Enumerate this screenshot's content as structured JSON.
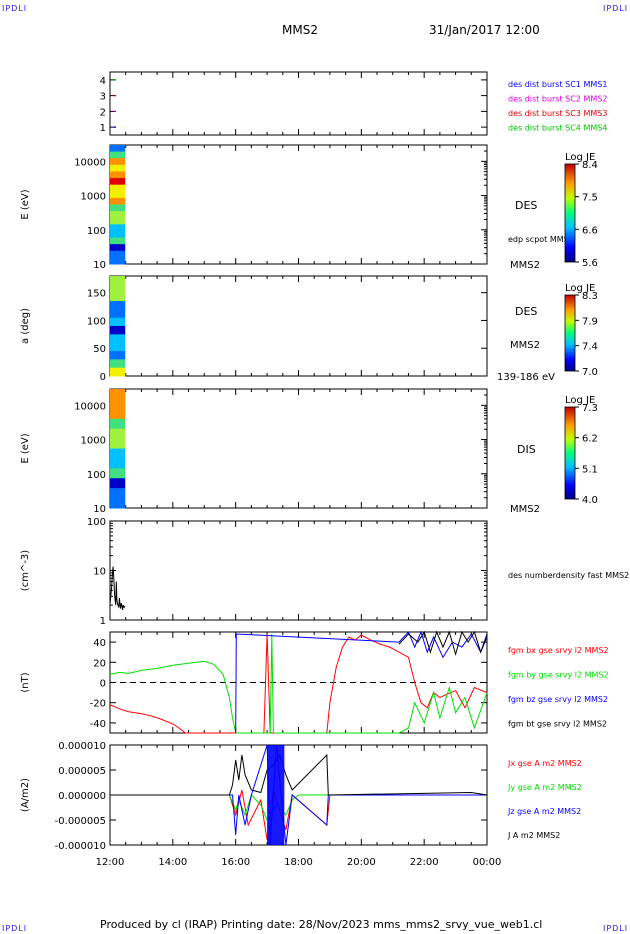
{
  "header": {
    "corner_left": "IPDLI",
    "corner_right": "IPDLI",
    "spacecraft": "MMS2",
    "datetime": "31/Jan/2017 12:00",
    "corner_bottom_left": "IPDLI",
    "corner_bottom_right": "IPDLI"
  },
  "footer": {
    "text": "Produced by cl (IRAP)   Printing date: 28/Nov/2023   mms_mms2_srvy_vue_web1.cl"
  },
  "time_axis": {
    "start_hour": 12,
    "end_hour": 24,
    "ticks": [
      "12:00",
      "14:00",
      "16:00",
      "18:00",
      "20:00",
      "22:00",
      "00:00"
    ]
  },
  "colors": {
    "mms1": "#0000ff",
    "mms2": "#e000e0",
    "mms3": "#e00000",
    "mms4": "#00c000",
    "bx": "#ff0000",
    "by": "#00e000",
    "bz": "#0000ff",
    "bt": "#000000"
  },
  "chart_data": [
    {
      "type": "scatter",
      "panel": "burst_availability",
      "ylim": [
        0.5,
        4.5
      ],
      "yticks": [
        "1",
        "2",
        "3",
        "4"
      ],
      "legend": [
        "des dist burst SC1 MMS1",
        "des dist burst SC2 MMS2",
        "des dist burst SC3 MMS3",
        "des dist burst SC4 MMS4"
      ],
      "series": [
        {
          "name": "des dist burst SC1 MMS1",
          "x": [
            12.15
          ],
          "y": [
            1
          ]
        },
        {
          "name": "des dist burst SC2 MMS2",
          "x": [
            12.15
          ],
          "y": [
            2
          ]
        },
        {
          "name": "des dist burst SC3 MMS3",
          "x": [
            12.15
          ],
          "y": [
            3
          ]
        },
        {
          "name": "des dist burst SC4 MMS4",
          "x": [
            12.15
          ],
          "y": [
            4
          ]
        }
      ]
    },
    {
      "type": "heatmap",
      "panel": "des_energy",
      "ylabel": "E (eV)",
      "yscale": "log",
      "ylim": [
        10,
        30000
      ],
      "yticks": [
        "10",
        "100",
        "1000",
        "10000"
      ],
      "data_span": [
        12.0,
        12.47
      ],
      "side_labels": [
        "DES",
        "edp scpot MMS2",
        "MMS2"
      ],
      "colorbar": {
        "title": "Log JE",
        "ticks": [
          "8.4",
          "7.5",
          "6.6",
          "5.6"
        ],
        "range": [
          5.6,
          8.4
        ]
      }
    },
    {
      "type": "heatmap",
      "panel": "des_pitch",
      "ylabel": "a (deg)",
      "ylim": [
        0,
        180
      ],
      "yticks": [
        "0",
        "50",
        "100",
        "150"
      ],
      "data_span": [
        12.0,
        12.47
      ],
      "side_labels": [
        "DES",
        "MMS2",
        "139-186 eV"
      ],
      "colorbar": {
        "title": "Log JE",
        "ticks": [
          "8.3",
          "7.9",
          "7.4",
          "7.0"
        ],
        "range": [
          7.0,
          8.3
        ]
      }
    },
    {
      "type": "heatmap",
      "panel": "dis_energy",
      "ylabel": "E (eV)",
      "yscale": "log",
      "ylim": [
        10,
        30000
      ],
      "yticks": [
        "10",
        "100",
        "1000",
        "10000"
      ],
      "data_span": [
        12.0,
        12.47
      ],
      "side_labels": [
        "DIS",
        "MMS2"
      ],
      "colorbar": {
        "title": "Log JE",
        "ticks": [
          "7.3",
          "6.2",
          "5.1",
          "4.0"
        ],
        "range": [
          4.0,
          7.3
        ]
      }
    },
    {
      "type": "line",
      "panel": "density",
      "ylabel": "(cm^-3)",
      "yscale": "log",
      "ylim": [
        1,
        100
      ],
      "yticks": [
        "1",
        "10",
        "100"
      ],
      "legend": [
        "des numberdensity fast MMS2"
      ],
      "series": [
        {
          "name": "des numberdensity fast MMS2",
          "x": [
            12.0,
            12.05,
            12.08,
            12.1,
            12.12,
            12.15,
            12.18,
            12.2,
            12.22,
            12.25,
            12.28,
            12.3,
            12.33,
            12.36,
            12.4,
            12.42,
            12.45,
            12.47
          ],
          "y": [
            2.1,
            4.5,
            9.0,
            12.0,
            7.0,
            3.0,
            2.0,
            6.0,
            2.5,
            2.0,
            1.8,
            2.8,
            1.7,
            2.2,
            1.6,
            2.0,
            1.8,
            1.9
          ]
        }
      ]
    },
    {
      "type": "line",
      "panel": "magnetic_field",
      "ylabel": "(nT)",
      "ylim": [
        -50,
        50
      ],
      "yticks": [
        "-40",
        "-20",
        "0",
        "20",
        "40"
      ],
      "zero_line": true,
      "legend": [
        "fgm bx gse srvy l2 MMS2",
        "fgm by gse srvy l2 MMS2",
        "fgm bz gse srvy l2 MMS2",
        "fgm bt gse srvy l2 MMS2"
      ],
      "series": [
        {
          "name": "fgm bx gse srvy l2 MMS2",
          "x": [
            12.0,
            12.3,
            12.6,
            13.0,
            13.3,
            13.6,
            14.0,
            14.2,
            14.4,
            16.9,
            17.0,
            17.1,
            18.9,
            19.0,
            19.2,
            19.4,
            19.6,
            19.8,
            20.0,
            20.3,
            20.6,
            20.9,
            21.2,
            21.5,
            21.7,
            21.9,
            22.1,
            22.3,
            22.5,
            22.7,
            23.0,
            23.3,
            23.6,
            24.0
          ],
          "y": [
            -22,
            -26,
            -29,
            -31,
            -33,
            -36,
            -41,
            -45,
            -50,
            -50,
            48,
            -50,
            -50,
            -20,
            15,
            35,
            45,
            42,
            47,
            42,
            38,
            35,
            30,
            25,
            0,
            -20,
            -25,
            -10,
            -15,
            -12,
            -8,
            -25,
            -5,
            -10
          ]
        },
        {
          "name": "fgm by gse srvy l2 MMS2",
          "x": [
            12.0,
            12.3,
            12.6,
            13.0,
            13.5,
            14.0,
            14.5,
            15.0,
            15.3,
            15.6,
            15.8,
            15.9,
            16.0,
            17.1,
            17.15,
            17.2,
            17.3,
            21.2,
            21.5,
            21.7,
            22.0,
            22.3,
            22.5,
            22.8,
            23.0,
            23.3,
            23.6,
            24.0
          ],
          "y": [
            8,
            10,
            9,
            12,
            14,
            17,
            19,
            21,
            18,
            8,
            -15,
            -35,
            -50,
            -50,
            48,
            -50,
            -50,
            -50,
            -45,
            -20,
            -40,
            -10,
            -35,
            -5,
            -30,
            -15,
            -45,
            -10
          ]
        },
        {
          "name": "fgm bz gse srvy l2 MMS2",
          "x": [
            16.0,
            16.02,
            21.2,
            21.5,
            21.7,
            21.9,
            22.1,
            22.3,
            22.6,
            22.9,
            23.2,
            23.5,
            23.8,
            24.0
          ],
          "y": [
            -50,
            48,
            40,
            50,
            35,
            50,
            30,
            45,
            25,
            40,
            35,
            48,
            30,
            45
          ]
        },
        {
          "name": "fgm bt gse srvy l2 MMS2",
          "x": [
            21.2,
            21.5,
            21.8,
            22.0,
            22.2,
            22.4,
            22.6,
            22.8,
            23.0,
            23.2,
            23.4,
            23.6,
            23.8,
            24.0
          ],
          "y": [
            38,
            48,
            40,
            50,
            30,
            50,
            35,
            50,
            28,
            50,
            40,
            50,
            30,
            48
          ]
        }
      ]
    },
    {
      "type": "line",
      "panel": "current_density",
      "ylabel": "(A/m2)",
      "ylim": [
        -1e-05,
        1e-05
      ],
      "yticks": [
        "-0.000010",
        "-0.000005",
        "0.000000",
        "0.000005",
        "0.000010"
      ],
      "legend": [
        "Jx gse A m2 MMS2",
        "Jy gse A m2 MMS2",
        "Jz gse A m2 MMS2",
        "J A m2 MMS2"
      ],
      "series": [
        {
          "name": "Jx gse A m2 MMS2",
          "x": [
            12.0,
            15.8,
            16.0,
            16.2,
            16.4,
            16.8,
            17.0,
            17.2,
            17.4,
            17.6,
            17.8,
            18.9,
            19.0,
            24.0
          ],
          "y": [
            0,
            0,
            -4e-06,
            1e-06,
            -6e-06,
            -1e-06,
            -9e-06,
            1e-06,
            -3e-06,
            -7e-06,
            0,
            -6e-06,
            0,
            0
          ]
        },
        {
          "name": "Jy gse A m2 MMS2",
          "x": [
            12.0,
            15.8,
            16.0,
            16.1,
            16.3,
            16.5,
            16.8,
            17.0,
            17.3,
            17.6,
            17.8,
            18.0,
            24.0
          ],
          "y": [
            0,
            0,
            -3e-06,
            -1e-06,
            -4e-06,
            0,
            -2e-06,
            -5e-06,
            -2e-06,
            -4e-06,
            -1e-06,
            0,
            0
          ]
        },
        {
          "name": "Jz gse A m2 MMS2",
          "x": [
            12.0,
            15.9,
            16.0,
            16.1,
            16.3,
            16.5,
            17.0,
            17.1,
            17.3,
            17.6,
            17.8,
            18.9,
            18.95,
            24.0
          ],
          "y": [
            0,
            0,
            -8e-06,
            0,
            -6e-06,
            0,
            1e-05,
            -1e-05,
            1e-05,
            -1e-05,
            0,
            -6e-06,
            0,
            0
          ]
        },
        {
          "name": "J A m2 MMS2",
          "x": [
            12.0,
            15.8,
            15.9,
            16.0,
            16.1,
            16.2,
            16.3,
            16.5,
            16.8,
            17.0,
            17.2,
            17.4,
            17.6,
            17.8,
            18.9,
            18.95,
            23.5,
            24.0
          ],
          "y": [
            0,
            0,
            2e-06,
            7e-06,
            3e-06,
            8e-06,
            4e-06,
            1e-06,
            5e-07,
            5e-06,
            6e-06,
            8e-06,
            4e-06,
            1e-06,
            8e-06,
            0,
            5e-07,
            0
          ]
        }
      ]
    }
  ]
}
